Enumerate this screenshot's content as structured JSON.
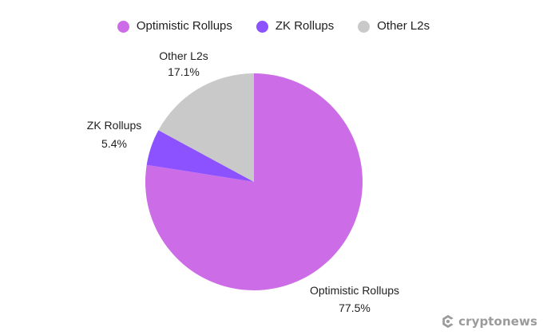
{
  "chart_data": {
    "type": "pie",
    "title": "",
    "legend_position": "top",
    "slices": [
      {
        "label": "Optimistic Rollups",
        "value": 77.5,
        "value_label": "77.5%",
        "color": "#cc6ce7"
      },
      {
        "label": "ZK Rollups",
        "value": 5.4,
        "value_label": "5.4%",
        "color": "#8c52ff"
      },
      {
        "label": "Other L2s",
        "value": 17.1,
        "value_label": "17.1%",
        "color": "#c9c9c9"
      }
    ]
  },
  "watermark": {
    "text": "cryptonews",
    "icon": "cryptonews-logo-icon"
  }
}
